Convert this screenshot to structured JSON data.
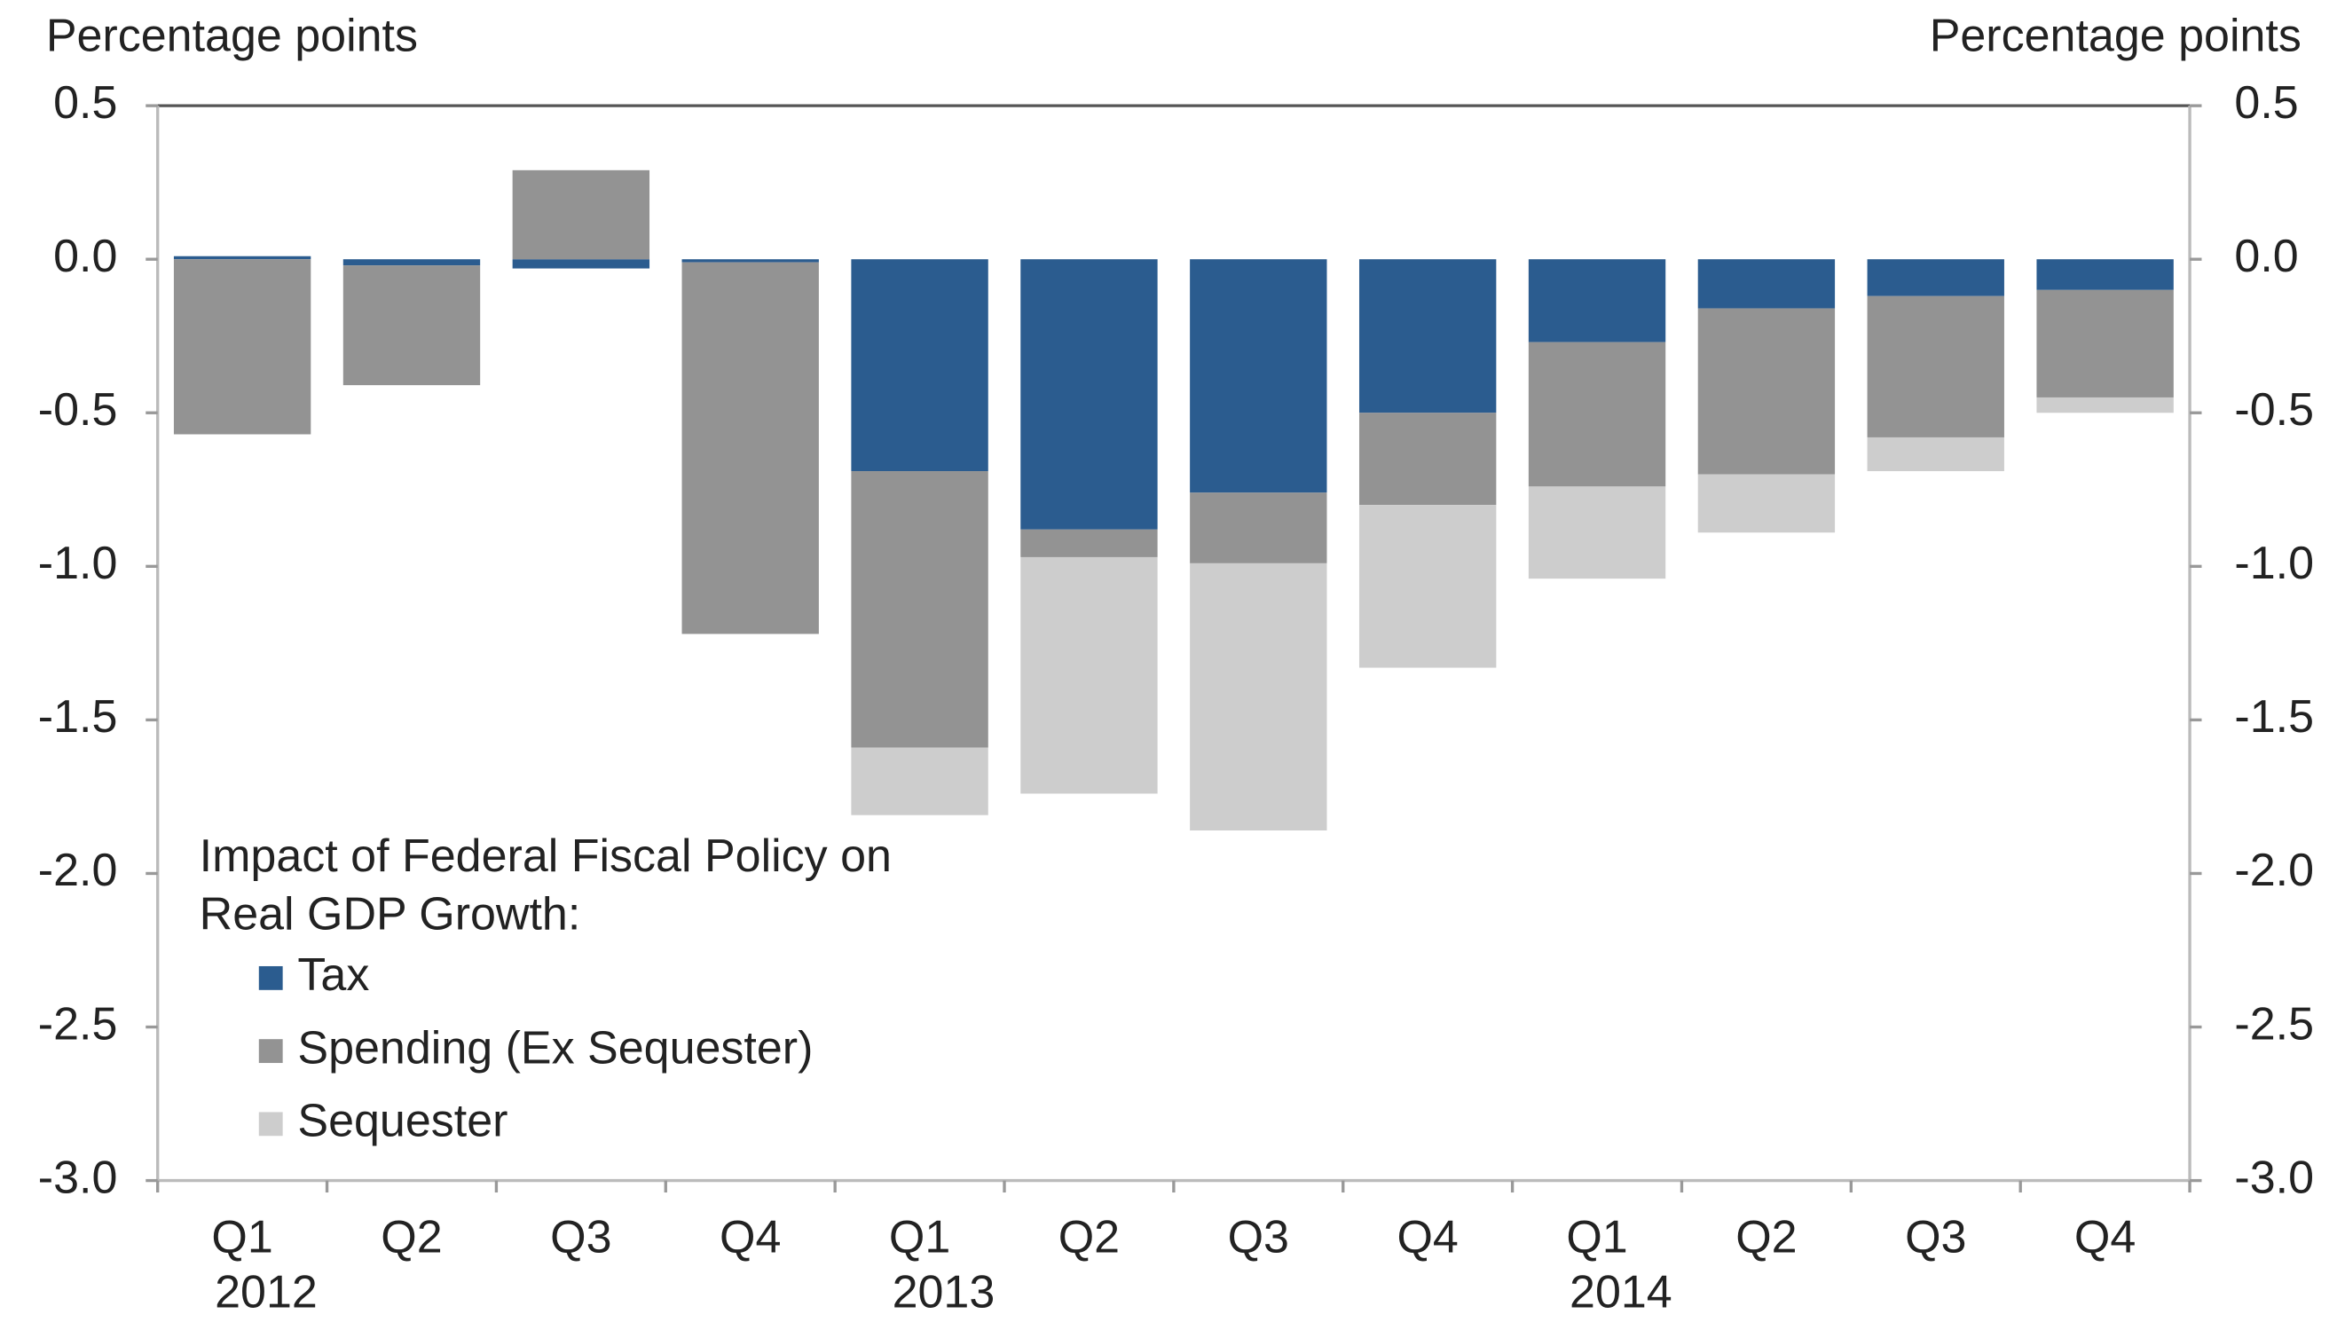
{
  "chart_data": {
    "type": "stacked_bar",
    "ylabel": "Percentage points",
    "y2label": "Percentage points",
    "legend_title": [
      "Impact of Federal Fiscal Policy on",
      "Real GDP Growth:"
    ],
    "legend_position": "lower left",
    "categories": [
      "Q1",
      "Q2",
      "Q3",
      "Q4",
      "Q1",
      "Q2",
      "Q3",
      "Q4",
      "Q1",
      "Q2",
      "Q3",
      "Q4"
    ],
    "years": [
      "2012",
      null,
      null,
      null,
      "2013",
      null,
      null,
      null,
      "2014",
      null,
      null,
      null
    ],
    "series": [
      {
        "name": "Tax",
        "color": "#2b5c8f",
        "values": [
          0.01,
          -0.02,
          -0.03,
          -0.01,
          -0.69,
          -0.88,
          -0.76,
          -0.5,
          -0.27,
          -0.16,
          -0.12,
          -0.1
        ]
      },
      {
        "name": "Spending (Ex Sequester)",
        "color": "#939393",
        "values": [
          -0.57,
          -0.39,
          0.29,
          -1.21,
          -0.9,
          -0.09,
          -0.23,
          -0.3,
          -0.47,
          -0.54,
          -0.46,
          -0.35
        ]
      },
      {
        "name": "Sequester",
        "color": "#cdcdcd",
        "values": [
          0,
          0,
          0,
          0,
          -0.22,
          -0.77,
          -0.87,
          -0.53,
          -0.3,
          -0.19,
          -0.11,
          -0.05
        ]
      }
    ],
    "ylim": [
      -3,
      0.5
    ],
    "yticks": [
      0.5,
      {
        "value": 0,
        "label": "0.0"
      },
      -0.5,
      {
        "value": -1,
        "label": "-1.0"
      },
      -1.5,
      {
        "value": -2,
        "label": "-2.0"
      },
      -2.5,
      {
        "value": -3,
        "label": "-3.0"
      }
    ],
    "y2lim": [
      -3,
      0.5
    ],
    "y2ticks": [
      0.5,
      {
        "value": 0,
        "label": "0.0"
      },
      -0.5,
      {
        "value": -1,
        "label": "-1.0"
      },
      -1.5,
      {
        "value": -2,
        "label": "-2.0"
      },
      -2.5,
      {
        "value": -3,
        "label": "-3.0"
      }
    ]
  }
}
